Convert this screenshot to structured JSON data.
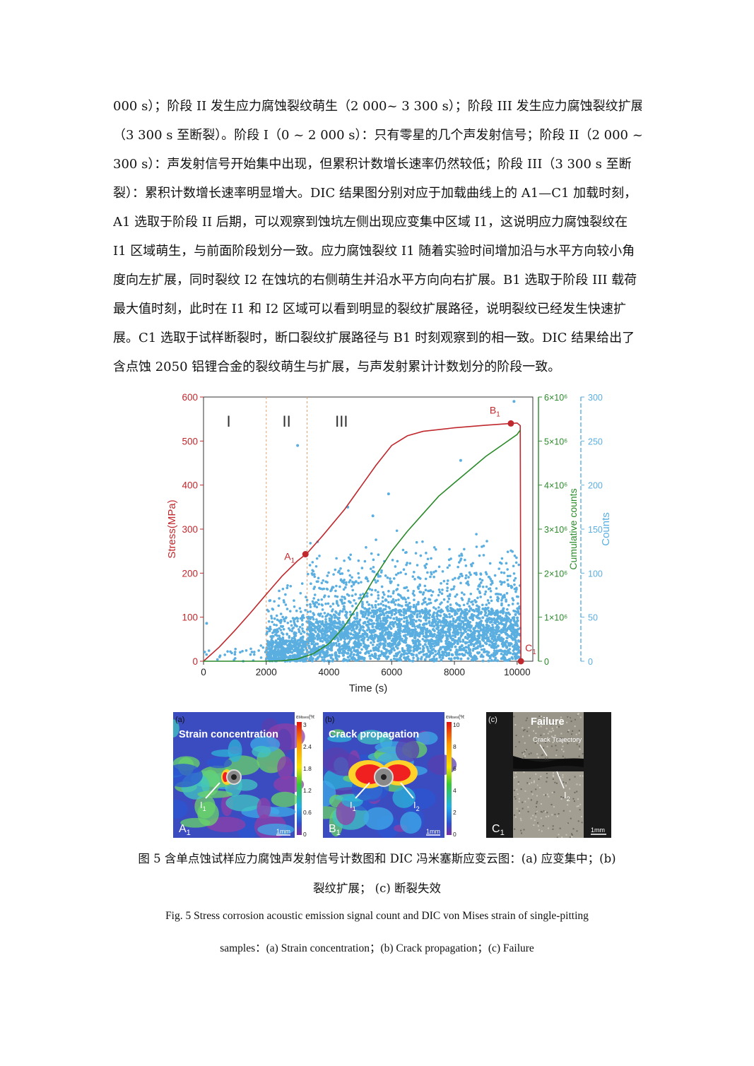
{
  "body_text": [
    "000 s）；阶段 II 发生应力腐蚀裂纹萌生（2 000~ 3 300 s）；阶段 III 发生应力腐蚀裂纹扩展",
    "（3 300 s 至断裂）。阶段 I（0 ~ 2 000 s）：只有零星的几个声发射信号；阶段 II（2 000 ~3",
    "300 s）：声发射信号开始集中出现，但累积计数增长速率仍然较低；阶段 III（3 300 s 至断",
    "裂）：累积计数增长速率明显增大。DIC 结果图分别对应于加载曲线上的 A1—C1 加载时刻，",
    "A1 选取于阶段 II 后期，可以观察到蚀坑左侧出现应变集中区域 I1，这说明应力腐蚀裂纹在",
    "I1 区域萌生，与前面阶段划分一致。应力腐蚀裂纹 I1 随着实验时间增加沿与水平方向较小角",
    "度向左扩展，同时裂纹 I2 在蚀坑的右侧萌生并沿水平方向向右扩展。B1 选取于阶段 III 载荷",
    "最大值时刻，此时在 I1 和 I2 区域可以看到明显的裂纹扩展路径，说明裂纹已经发生快速扩",
    "展。C1 选取于试样断裂时，断口裂纹扩展路径与 B1 时刻观察到的相一致。DIC 结果给出了",
    "含点蚀 2050 铝锂合金的裂纹萌生与扩展，与声发射累计计数划分的阶段一致。"
  ],
  "chart_data": {
    "type": "line",
    "xlabel": "Time (s)",
    "xlim": [
      0,
      10500
    ],
    "xticks": [
      "0",
      "2000",
      "4000",
      "6000",
      "8000",
      "10000"
    ],
    "y_left": {
      "label": "Stress(MPa)",
      "lim": [
        0,
        600
      ],
      "ticks": [
        "0",
        "100",
        "200",
        "300",
        "400",
        "500",
        "600"
      ],
      "color": "#c0282d"
    },
    "y_mid": {
      "label": "Cumulative counts",
      "lim": [
        0,
        6000000
      ],
      "ticks": [
        "0",
        "1×10⁶",
        "2×10⁶",
        "3×10⁶",
        "4×10⁶",
        "5×10⁶",
        "6×10⁶"
      ],
      "color": "#2a8a2a"
    },
    "y_right": {
      "label": "Counts",
      "lim": [
        0,
        300
      ],
      "ticks": [
        "0",
        "50",
        "100",
        "150",
        "200",
        "250",
        "300"
      ],
      "color": "#5aaee0"
    },
    "stage_labels": [
      "I",
      "II",
      "III"
    ],
    "stage_bounds": [
      2000,
      3300
    ],
    "series": [
      {
        "axis": "left",
        "color": "#c0282d",
        "x": [
          0,
          500,
          1000,
          1500,
          2000,
          2500,
          3000,
          3300,
          3800,
          4500,
          5000,
          5500,
          6000,
          6500,
          7000,
          8000,
          9000,
          9800,
          10000,
          10100,
          10120
        ],
        "y": [
          0,
          32,
          70,
          110,
          152,
          193,
          228,
          245,
          285,
          345,
          395,
          445,
          490,
          512,
          522,
          530,
          536,
          540,
          541,
          535,
          0
        ]
      },
      {
        "axis": "mid",
        "color": "#2a8a2a",
        "x": [
          0,
          2000,
          2500,
          3000,
          3500,
          4000,
          4500,
          5000,
          5500,
          6000,
          6500,
          7000,
          7500,
          8000,
          8500,
          9000,
          9500,
          10000,
          10100
        ],
        "y": [
          0,
          0,
          10000,
          50000,
          170000,
          400000,
          800000,
          1350000,
          1950000,
          2500000,
          2950000,
          3350000,
          3750000,
          4050000,
          4350000,
          4650000,
          4900000,
          5150000,
          5250000
        ]
      }
    ],
    "markers": [
      {
        "label": "A",
        "sub": "1",
        "x": 3250,
        "y": 243
      },
      {
        "label": "B",
        "sub": "1",
        "x": 9800,
        "y": 540
      },
      {
        "label": "C",
        "sub": "1",
        "x": 10120,
        "y": 0
      }
    ]
  },
  "panels": [
    {
      "tag": "(a)",
      "title": "Strain concentration",
      "corner": "A",
      "corner_sub": "1",
      "crack": "I",
      "crack_sub": "1",
      "scale": "1mm",
      "bar_label": "ε",
      "bar_label_sub": "Mises",
      "bar_unit": "(%)",
      "bar_ticks": [
        "3",
        "2.4",
        "1.8",
        "1.2",
        "0.6",
        "0"
      ]
    },
    {
      "tag": "(b)",
      "title": "Crack propagation",
      "corner": "B",
      "corner_sub": "1",
      "crack": "I",
      "crack_sub": "1",
      "crack2": "I",
      "crack2_sub": "2",
      "scale": "1mm",
      "bar_label": "ε",
      "bar_label_sub": "Mises",
      "bar_unit": "(%)",
      "bar_ticks": [
        "10",
        "8",
        "6",
        "4",
        "2",
        "0"
      ]
    },
    {
      "tag": "(c)",
      "title": "Failure",
      "note": "Crack Trajectory",
      "corner": "C",
      "corner_sub": "1",
      "crack": "I",
      "crack_sub": "2",
      "scale": "1mm"
    }
  ],
  "caption_cn_1": "图 5  含单点蚀试样应力腐蚀声发射信号计数图和 DIC 冯米塞斯应变云图：(a)  应变集中；(b)",
  "caption_cn_2": "裂纹扩展；  (c)  断裂失效",
  "caption_en_1": "Fig. 5 Stress corrosion acoustic emission signal count and DIC von Mises strain of single-pitting",
  "caption_en_2": "samples：(a) Strain concentration；(b) Crack propagation；(c) Failure"
}
